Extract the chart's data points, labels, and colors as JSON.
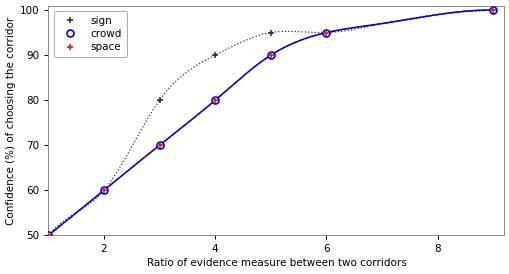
{
  "sign_x": [
    1,
    1.5,
    2,
    3,
    4,
    5,
    6,
    7,
    8,
    9
  ],
  "sign_y": [
    50,
    55,
    60,
    80,
    90,
    95,
    95,
    97,
    99,
    100
  ],
  "crowd_x": [
    1,
    2,
    3,
    4,
    5,
    6,
    7,
    8,
    9
  ],
  "crowd_y": [
    50,
    60,
    70,
    80,
    90,
    95,
    97,
    99,
    100
  ],
  "space_x": [
    1,
    2,
    3,
    4,
    5,
    6,
    7,
    8,
    9
  ],
  "space_y": [
    50,
    60,
    70,
    80,
    90,
    95,
    97,
    99,
    100
  ],
  "sign_marker_x": [
    1,
    2,
    3,
    4,
    5,
    6,
    9
  ],
  "sign_marker_y": [
    50,
    60,
    80,
    90,
    95,
    95,
    100
  ],
  "crowd_marker_x": [
    1,
    2,
    3,
    4,
    5,
    6,
    9
  ],
  "crowd_marker_y": [
    50,
    60,
    70,
    80,
    90,
    95,
    100
  ],
  "space_marker_x": [
    1,
    2,
    3,
    4,
    5,
    6,
    9
  ],
  "space_marker_y": [
    50,
    60,
    70,
    80,
    90,
    95,
    100
  ],
  "sign_color": "#333333",
  "crowd_color": "#0000dd",
  "space_color": "#cc2222",
  "xlabel": "Ratio of evidence measure between two corridors",
  "ylabel": "Confidence (%) of choosing the corridor",
  "xlim": [
    1,
    9.2
  ],
  "ylim": [
    50,
    101
  ],
  "yticks": [
    50,
    60,
    70,
    80,
    90,
    100
  ],
  "xticks": [
    2,
    4,
    6,
    8
  ],
  "background_color": "#ffffff"
}
